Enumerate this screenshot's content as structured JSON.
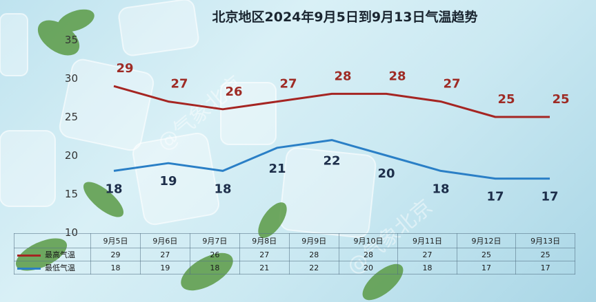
{
  "chart_data": {
    "type": "line",
    "title": "北京地区2024年9月5日到9月13日气温趋势",
    "categories": [
      "9月5日",
      "9月6日",
      "9月7日",
      "9月8日",
      "9月9日",
      "9月10日",
      "9月11日",
      "9月12日",
      "9月13日"
    ],
    "series": [
      {
        "name": "最高气温",
        "color": "#a52522",
        "values": [
          29,
          27,
          26,
          27,
          28,
          28,
          27,
          25,
          25
        ]
      },
      {
        "name": "最低气温",
        "color": "#2a7fc6",
        "values": [
          18,
          19,
          18,
          21,
          22,
          20,
          18,
          17,
          17
        ]
      }
    ],
    "yticks": [
      10,
      15,
      20,
      25,
      30,
      35
    ],
    "ylim": [
      10,
      35
    ],
    "xlabel": "",
    "ylabel": "",
    "grid": false,
    "legend": "table-left"
  },
  "watermark": "@气象北京"
}
